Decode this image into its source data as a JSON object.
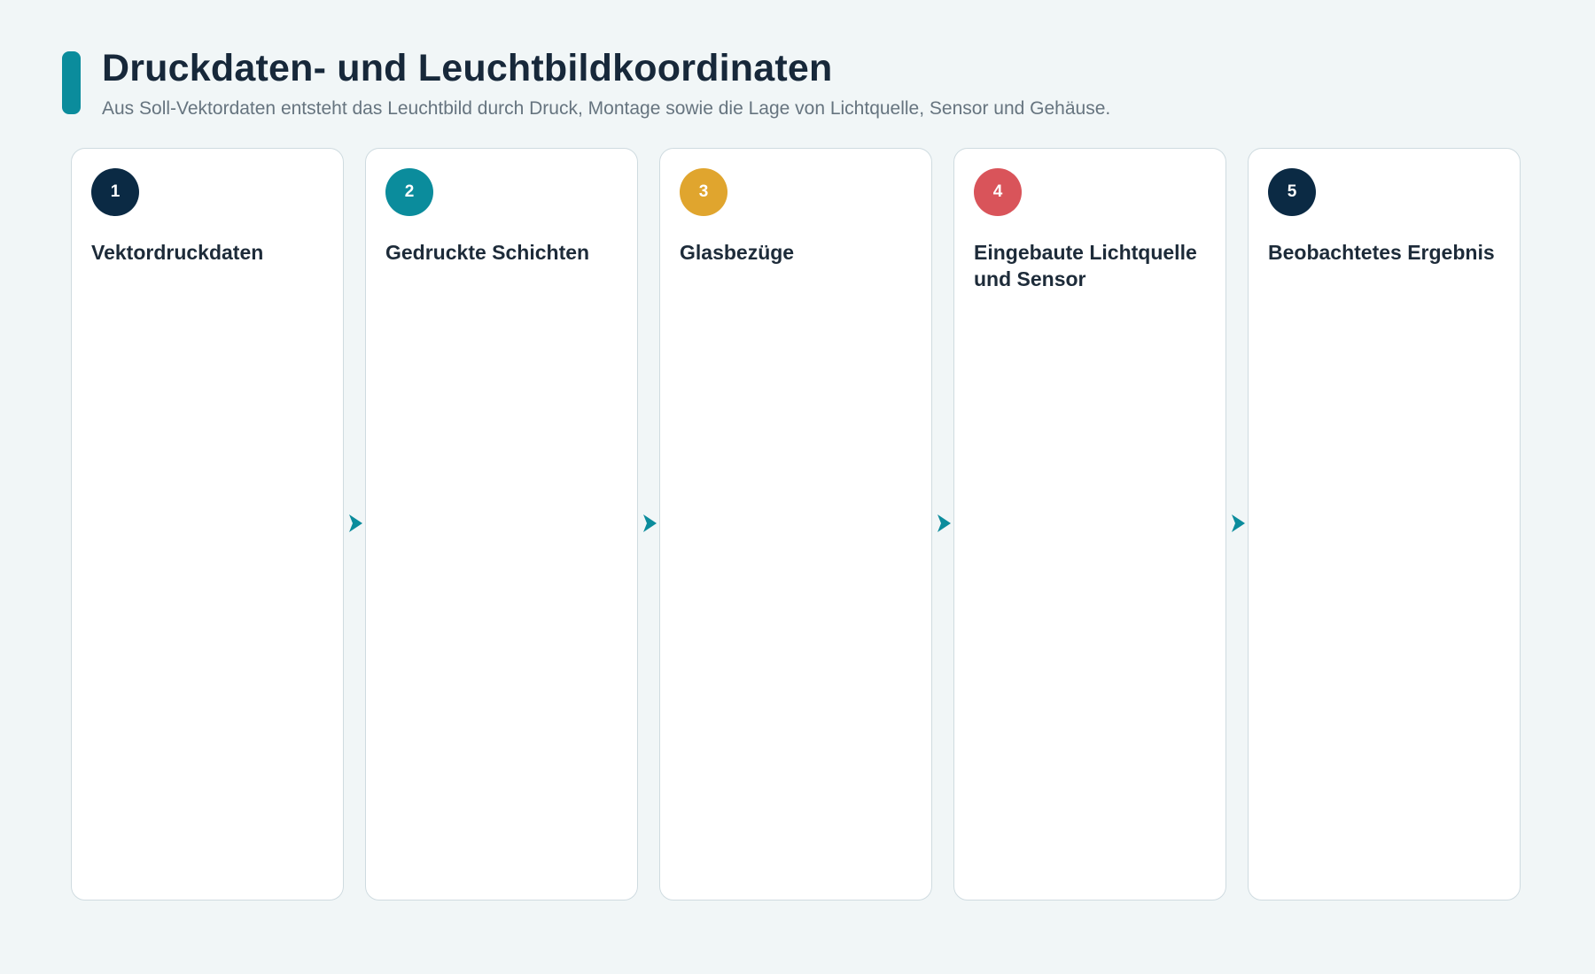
{
  "header": {
    "title": "Druckdaten- und Leuchtbildkoordinaten",
    "subtitle": "Aus Soll-Vektordaten entsteht das Leuchtbild durch Druck, Montage sowie die Lage von Lichtquelle, Sensor und Gehäuse."
  },
  "colors": {
    "background": "#f1f6f7",
    "accent": "#0b8c9c",
    "arrow": "#0b8c9c",
    "step1": "#0b2a44",
    "step2": "#0b8c9c",
    "step3": "#e0a52e",
    "step4": "#d9545a",
    "step5": "#0b2a44"
  },
  "steps": [
    {
      "number": "1",
      "title": "Vektordruckdaten"
    },
    {
      "number": "2",
      "title": "Gedruckte Schichten"
    },
    {
      "number": "3",
      "title": "Glasbezüge"
    },
    {
      "number": "4",
      "title": "Eingebaute Lichtquelle und Sensor"
    },
    {
      "number": "5",
      "title": "Beobachtetes Ergebnis"
    }
  ]
}
